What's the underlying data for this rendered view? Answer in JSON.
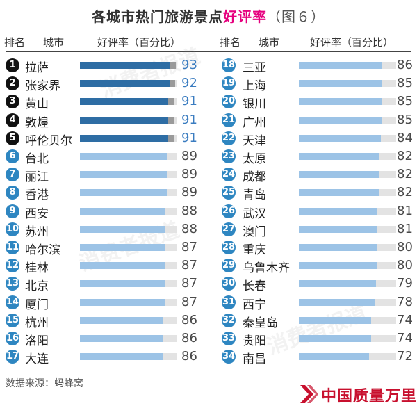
{
  "title": {
    "main": "各城市热门旅游景点",
    "highlight": "好评率",
    "figure": "（图６）"
  },
  "headers": {
    "rank": "排名",
    "city": "城市",
    "rate": "好评率（百分比）"
  },
  "source": "数据来源：蚂蜂窝",
  "logo_text": "中国质量万里行",
  "watermark": "消费者报道",
  "chart_data": {
    "type": "bar",
    "title": "各城市热门旅游景点好评率（图６）",
    "xlabel": "城市",
    "ylabel": "好评率（百分比）",
    "categories": [
      "拉萨",
      "张家界",
      "黄山",
      "敦煌",
      "呼伦贝尔",
      "台北",
      "丽江",
      "香港",
      "西安",
      "苏州",
      "哈尔滨",
      "桂林",
      "北京",
      "厦门",
      "杭州",
      "洛阳",
      "大连",
      "三亚",
      "上海",
      "银川",
      "广州",
      "天津",
      "太原",
      "成都",
      "青岛",
      "武汉",
      "澳门",
      "重庆",
      "乌鲁木齐",
      "长春",
      "西宁",
      "秦皇岛",
      "贵阳",
      "南昌"
    ],
    "values": [
      93,
      92,
      91,
      91,
      91,
      89,
      89,
      89,
      88,
      88,
      87,
      87,
      87,
      87,
      86,
      86,
      86,
      86,
      85,
      85,
      85,
      84,
      82,
      82,
      82,
      81,
      81,
      80,
      80,
      79,
      78,
      74,
      74,
      72
    ],
    "ranks": [
      1,
      2,
      3,
      4,
      5,
      6,
      7,
      8,
      9,
      10,
      11,
      12,
      13,
      14,
      15,
      16,
      17,
      18,
      19,
      20,
      21,
      22,
      23,
      24,
      25,
      26,
      27,
      28,
      29,
      30,
      31,
      32,
      33,
      34
    ],
    "ylim": [
      0,
      100
    ],
    "colors": {
      "top5": "#2e6da4",
      "rest": "#9cc3e6",
      "track": "#e3e3e3",
      "top5_value": "#3a7cc0"
    }
  }
}
